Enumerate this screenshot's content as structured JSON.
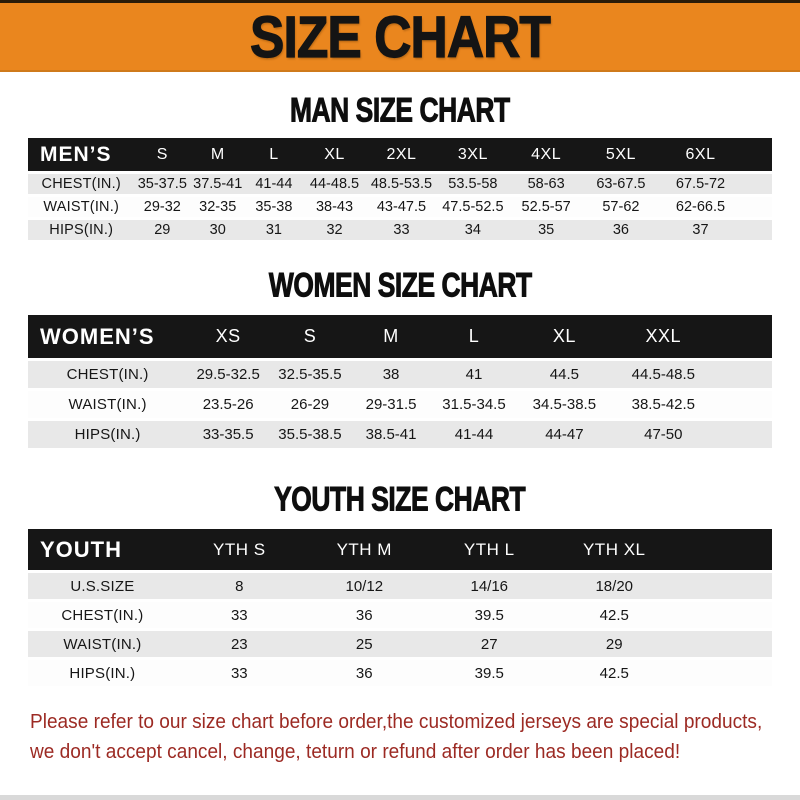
{
  "banner": {
    "title": "SIZE CHART",
    "bg_color": "#EA861E",
    "text_color": "#141414"
  },
  "colors": {
    "table_header_bg": "#161616",
    "table_header_text": "#FFFFFF",
    "row_alt_bg": "#E8E8E8",
    "row_bg": "#FDFDFD",
    "footer_text": "#9C2A23"
  },
  "sections": [
    {
      "title": "MAN SIZE CHART",
      "table": {
        "header_label": "MEN’S",
        "sizes": [
          "S",
          "M",
          "L",
          "XL",
          "2XL",
          "3XL",
          "4XL",
          "5XL",
          "6XL"
        ],
        "rows": [
          {
            "label": "CHEST(IN.)",
            "values": [
              "35-37.5",
              "37.5-41",
              "41-44",
              "44-48.5",
              "48.5-53.5",
              "53.5-58",
              "58-63",
              "63-67.5",
              "67.5-72"
            ]
          },
          {
            "label": "WAIST(IN.)",
            "values": [
              "29-32",
              "32-35",
              "35-38",
              "38-43",
              "43-47.5",
              "47.5-52.5",
              "52.5-57",
              "57-62",
              "62-66.5"
            ]
          },
          {
            "label": "HIPS(IN.)",
            "values": [
              "29",
              "30",
              "31",
              "32",
              "33",
              "34",
              "35",
              "36",
              "37"
            ]
          }
        ]
      }
    },
    {
      "title": "WOMEN SIZE CHART",
      "table": {
        "header_label": "WOMEN’S",
        "sizes": [
          "XS",
          "S",
          "M",
          "L",
          "XL",
          "XXL"
        ],
        "rows": [
          {
            "label": "CHEST(IN.)",
            "values": [
              "29.5-32.5",
              "32.5-35.5",
              "38",
              "41",
              "44.5",
              "44.5-48.5"
            ]
          },
          {
            "label": "WAIST(IN.)",
            "values": [
              "23.5-26",
              "26-29",
              "29-31.5",
              "31.5-34.5",
              "34.5-38.5",
              "38.5-42.5"
            ]
          },
          {
            "label": "HIPS(IN.)",
            "values": [
              "33-35.5",
              "35.5-38.5",
              "38.5-41",
              "41-44",
              "44-47",
              "47-50"
            ]
          }
        ]
      }
    },
    {
      "title": "YOUTH SIZE CHART",
      "table": {
        "header_label": "YOUTH",
        "sizes": [
          "YTH S",
          "YTH M",
          "YTH L",
          "YTH XL"
        ],
        "rows": [
          {
            "label": "U.S.SIZE",
            "values": [
              "8",
              "10/12",
              "14/16",
              "18/20"
            ]
          },
          {
            "label": "CHEST(IN.)",
            "values": [
              "33",
              "36",
              "39.5",
              "42.5"
            ]
          },
          {
            "label": "WAIST(IN.)",
            "values": [
              "23",
              "25",
              "27",
              "29"
            ]
          },
          {
            "label": "HIPS(IN.)",
            "values": [
              "33",
              "36",
              "39.5",
              "42.5"
            ]
          }
        ]
      }
    }
  ],
  "footer": {
    "line1": "Please refer to our size chart before order,the customized jerseys are special products,",
    "line2": "we don't accept cancel, change, teturn or refund after order has been placed!"
  },
  "chart_data": [
    {
      "type": "table",
      "title": "MAN SIZE CHART",
      "columns": [
        "MEN’S",
        "S",
        "M",
        "L",
        "XL",
        "2XL",
        "3XL",
        "4XL",
        "5XL",
        "6XL"
      ],
      "rows": [
        [
          "CHEST(IN.)",
          "35-37.5",
          "37.5-41",
          "41-44",
          "44-48.5",
          "48.5-53.5",
          "53.5-58",
          "58-63",
          "63-67.5",
          "67.5-72"
        ],
        [
          "WAIST(IN.)",
          "29-32",
          "32-35",
          "35-38",
          "38-43",
          "43-47.5",
          "47.5-52.5",
          "52.5-57",
          "57-62",
          "62-66.5"
        ],
        [
          "HIPS(IN.)",
          "29",
          "30",
          "31",
          "32",
          "33",
          "34",
          "35",
          "36",
          "37"
        ]
      ]
    },
    {
      "type": "table",
      "title": "WOMEN SIZE CHART",
      "columns": [
        "WOMEN’S",
        "XS",
        "S",
        "M",
        "L",
        "XL",
        "XXL"
      ],
      "rows": [
        [
          "CHEST(IN.)",
          "29.5-32.5",
          "32.5-35.5",
          "38",
          "41",
          "44.5",
          "44.5-48.5"
        ],
        [
          "WAIST(IN.)",
          "23.5-26",
          "26-29",
          "29-31.5",
          "31.5-34.5",
          "34.5-38.5",
          "38.5-42.5"
        ],
        [
          "HIPS(IN.)",
          "33-35.5",
          "35.5-38.5",
          "38.5-41",
          "41-44",
          "44-47",
          "47-50"
        ]
      ]
    },
    {
      "type": "table",
      "title": "YOUTH SIZE CHART",
      "columns": [
        "YOUTH",
        "YTH S",
        "YTH M",
        "YTH L",
        "YTH XL"
      ],
      "rows": [
        [
          "U.S.SIZE",
          "8",
          "10/12",
          "14/16",
          "18/20"
        ],
        [
          "CHEST(IN.)",
          "33",
          "36",
          "39.5",
          "42.5"
        ],
        [
          "WAIST(IN.)",
          "23",
          "25",
          "27",
          "29"
        ],
        [
          "HIPS(IN.)",
          "33",
          "36",
          "39.5",
          "42.5"
        ]
      ]
    }
  ]
}
